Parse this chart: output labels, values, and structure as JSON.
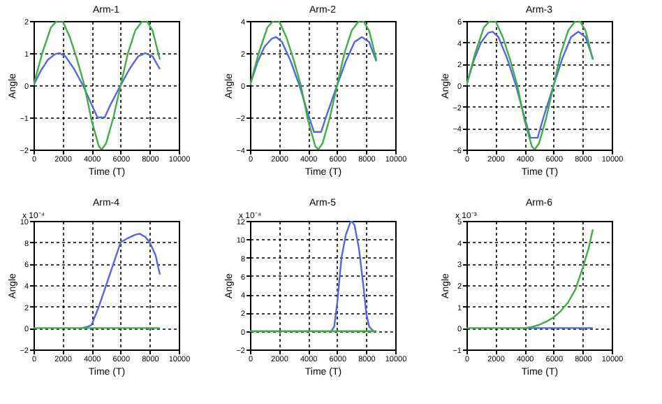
{
  "chart_data": [
    {
      "type": "line",
      "title": "Arm-1",
      "xlabel": "Time (T)",
      "ylabel": "Angle",
      "xlim": [
        0,
        10000
      ],
      "xticks": [
        0,
        2000,
        4000,
        6000,
        8000,
        10000
      ],
      "ylim": [
        -2,
        2
      ],
      "yticks": [
        -2,
        -1,
        0,
        1,
        2
      ],
      "grid": true,
      "line_style": "solid",
      "series": [
        {
          "color": "#4f68e8",
          "x": [
            0,
            500,
            1000,
            1500,
            1800,
            2200,
            2800,
            3400,
            4000,
            4400,
            4900,
            5300,
            6000,
            6600,
            7200,
            7700,
            8200,
            8700
          ],
          "values": [
            0,
            0.45,
            0.8,
            0.97,
            1,
            0.9,
            0.5,
            0,
            -0.6,
            -1,
            -1,
            -0.6,
            0,
            0.5,
            0.9,
            1,
            0.9,
            0.5
          ]
        },
        {
          "color": "#3cb043",
          "x": [
            0,
            600,
            1200,
            1600,
            2000,
            2500,
            3000,
            3500,
            4000,
            4500,
            4700,
            5000,
            5500,
            6000,
            6500,
            7000,
            7500,
            7800,
            8200,
            8700
          ],
          "values": [
            0,
            1,
            1.8,
            2,
            2,
            1.5,
            0.8,
            0,
            -1.1,
            -1.9,
            -2,
            -1.8,
            -1,
            0,
            1,
            1.7,
            2,
            2,
            1.7,
            0.8
          ]
        }
      ]
    },
    {
      "type": "line",
      "title": "Arm-2",
      "xlabel": "Time (T)",
      "ylabel": "Angle",
      "xlim": [
        0,
        10000
      ],
      "xticks": [
        0,
        2000,
        4000,
        6000,
        8000,
        10000
      ],
      "ylim": [
        -4,
        4
      ],
      "yticks": [
        -4,
        -2,
        0,
        2,
        4
      ],
      "grid": true,
      "line_style": "solid",
      "series": [
        {
          "color": "#4f68e8",
          "x": [
            0,
            500,
            1000,
            1500,
            1800,
            2200,
            2800,
            3400,
            4000,
            4400,
            4900,
            5300,
            6000,
            6600,
            7200,
            7700,
            8200,
            8700
          ],
          "values": [
            0,
            1.4,
            2.4,
            2.9,
            3,
            2.7,
            1.5,
            0,
            -1.8,
            -2.9,
            -2.9,
            -1.8,
            0,
            1.5,
            2.7,
            3,
            2.7,
            1.5
          ]
        },
        {
          "color": "#3cb043",
          "x": [
            0,
            600,
            1200,
            1600,
            2000,
            2500,
            3000,
            3500,
            4000,
            4500,
            4700,
            5000,
            5500,
            6000,
            6500,
            7000,
            7500,
            7800,
            8200,
            8700
          ],
          "values": [
            0,
            2,
            3.6,
            4,
            4,
            3,
            1.6,
            0,
            -2.2,
            -3.8,
            -4,
            -3.6,
            -2,
            0,
            2,
            3.4,
            4,
            4,
            3.4,
            1.6
          ]
        }
      ]
    },
    {
      "type": "line",
      "title": "Arm-3",
      "xlabel": "Time (T)",
      "ylabel": "Angle",
      "xlim": [
        0,
        10000
      ],
      "xticks": [
        0,
        2000,
        4000,
        6000,
        8000,
        10000
      ],
      "ylim": [
        -6,
        6
      ],
      "yticks": [
        -6,
        -4,
        -2,
        0,
        2,
        4,
        6
      ],
      "grid": true,
      "line_style": "solid",
      "series": [
        {
          "color": "#4f68e8",
          "x": [
            0,
            500,
            1000,
            1500,
            1800,
            2200,
            2800,
            3400,
            4000,
            4400,
            4900,
            5300,
            6000,
            6600,
            7200,
            7700,
            8200,
            8700
          ],
          "values": [
            0,
            2.3,
            4,
            4.9,
            5,
            4.5,
            2.5,
            0,
            -3,
            -4.9,
            -4.9,
            -3,
            0,
            2.5,
            4.5,
            5,
            4.5,
            2.5
          ]
        },
        {
          "color": "#3cb043",
          "x": [
            0,
            600,
            1200,
            1600,
            2000,
            2500,
            3000,
            3500,
            4000,
            4500,
            4700,
            5000,
            5500,
            6000,
            6500,
            7000,
            7500,
            7800,
            8200,
            8700
          ],
          "values": [
            0,
            3,
            5.4,
            6,
            6,
            4.5,
            2.4,
            0,
            -3.3,
            -5.7,
            -6,
            -5.4,
            -3,
            0,
            3,
            5.1,
            6,
            6,
            5.1,
            2.4
          ]
        }
      ]
    },
    {
      "type": "line",
      "title": "Arm-4",
      "xlabel": "Time (T)",
      "ylabel": "Angle",
      "annotations": [
        "x 10⁻⁴"
      ],
      "xlim": [
        0,
        10000
      ],
      "xticks": [
        0,
        2000,
        4000,
        6000,
        8000,
        10000
      ],
      "ylim": [
        -2,
        10
      ],
      "yticks": [
        -2,
        0,
        2,
        4,
        6,
        8,
        10
      ],
      "grid": true,
      "line_style": "solid",
      "series": [
        {
          "color": "#4f68e8",
          "x": [
            3300,
            3700,
            4000,
            4500,
            5000,
            5500,
            6000,
            6500,
            7000,
            7300,
            7700,
            8000,
            8400,
            8700
          ],
          "values": [
            0,
            0.1,
            0.3,
            2,
            4,
            6,
            8,
            8.4,
            8.7,
            8.8,
            8.5,
            8,
            6.8,
            5
          ]
        },
        {
          "color": "#3cb043",
          "x": [
            0,
            8700
          ],
          "values": [
            0,
            0
          ]
        }
      ]
    },
    {
      "type": "line",
      "title": "Arm-5",
      "xlabel": "Time (T)",
      "ylabel": "Angle",
      "annotations": [
        "x 10⁻⁴"
      ],
      "xlim": [
        0,
        10000
      ],
      "xticks": [
        0,
        2000,
        4000,
        6000,
        8000,
        10000
      ],
      "ylim": [
        -2,
        12
      ],
      "yticks": [
        -2,
        0,
        2,
        4,
        6,
        8,
        10,
        12
      ],
      "grid": true,
      "line_style": "solid",
      "series": [
        {
          "color": "#4f68e8",
          "x": [
            5600,
            5800,
            6000,
            6300,
            6600,
            6900,
            7000,
            7200,
            7500,
            7800,
            8000,
            8200,
            8500
          ],
          "values": [
            0,
            0.5,
            3,
            8,
            10.5,
            11.8,
            12,
            11.5,
            9,
            5,
            2,
            0.5,
            0
          ]
        },
        {
          "color": "#3cb043",
          "x": [
            0,
            8700
          ],
          "values": [
            0,
            0
          ]
        }
      ]
    },
    {
      "type": "line",
      "title": "Arm-6",
      "xlabel": "Time (T)",
      "ylabel": "Angle",
      "annotations": [
        "x 10⁻³"
      ],
      "xlim": [
        0,
        10000
      ],
      "xticks": [
        0,
        2000,
        4000,
        6000,
        8000,
        10000
      ],
      "ylim": [
        -1,
        5
      ],
      "yticks": [
        -1,
        0,
        1,
        2,
        3,
        4,
        5
      ],
      "grid": true,
      "line_style": "solid",
      "series": [
        {
          "color": "#4f68e8",
          "x": [
            4000,
            8700
          ],
          "values": [
            0,
            0
          ]
        },
        {
          "color": "#3cb043",
          "x": [
            0,
            4000,
            4500,
            5000,
            5500,
            6000,
            6500,
            7000,
            7500,
            8000,
            8400,
            8700
          ],
          "values": [
            0,
            0,
            0.05,
            0.15,
            0.3,
            0.5,
            0.8,
            1.2,
            1.8,
            2.8,
            3.7,
            4.6
          ]
        }
      ]
    }
  ]
}
